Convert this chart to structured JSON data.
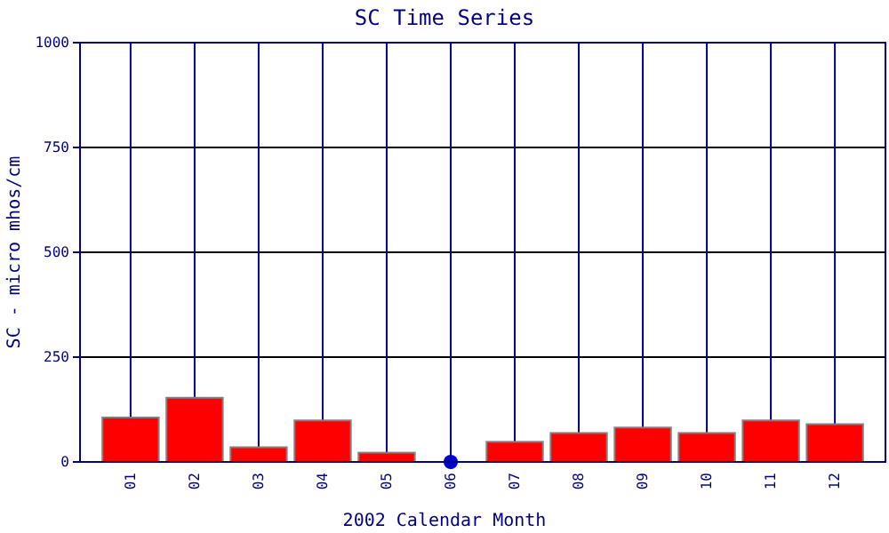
{
  "chart_data": {
    "type": "bar",
    "title": "SC Time Series",
    "xlabel": "2002 Calendar Month",
    "ylabel": "SC - micro mhos/cm",
    "categories": [
      "01",
      "02",
      "03",
      "04",
      "05",
      "06",
      "07",
      "08",
      "09",
      "10",
      "11",
      "12"
    ],
    "series": [
      {
        "color": "#ff0000",
        "values": [
          106,
          153,
          35,
          99,
          22,
          null,
          48,
          69,
          82,
          69,
          99,
          90
        ]
      },
      {
        "type": "scatter",
        "color": "#0000cc",
        "x": [
          "06"
        ],
        "values": [
          0
        ],
        "marker": "circle"
      }
    ],
    "ylim": [
      0,
      1000
    ],
    "yticks": [
      0,
      250,
      500,
      750,
      1000
    ],
    "grid": true
  }
}
